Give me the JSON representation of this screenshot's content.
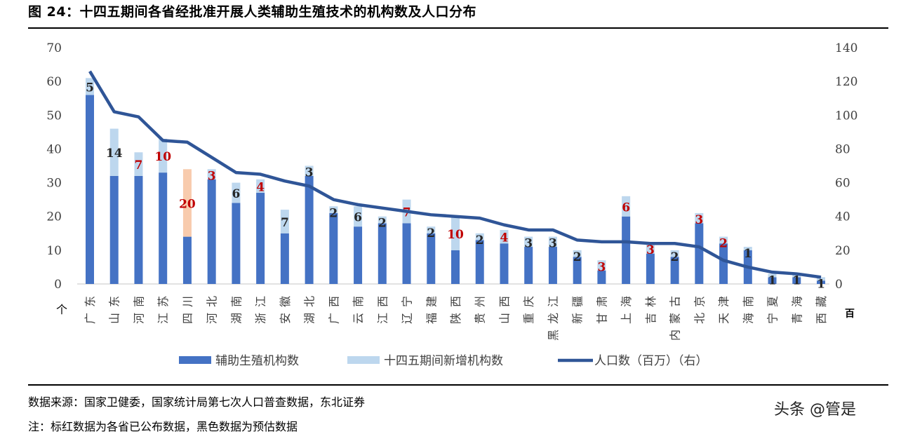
{
  "title": "图 24：十四五期间各省经批准开展人类辅助生殖技术的机构数及人口分布",
  "source": "数据来源：国家卫健委，国家统计局第七次人口普查数据，东北证券",
  "note": "注：标红数据为各省已公布数据，黑色数据为预估数据",
  "watermark": "头条 @管是",
  "colors": {
    "base": "#4472c4",
    "added": "#bdd7ee",
    "added_sichuan": "#f8cbad",
    "line": "#2f5597",
    "published_label": "#c00000",
    "estimated_label": "#262626"
  },
  "chart_data": {
    "type": "bar",
    "stacked": true,
    "left_axis": {
      "ylim": [
        0,
        70
      ],
      "ticks": [
        0,
        10,
        20,
        30,
        40,
        50,
        60,
        70
      ],
      "unit": "个"
    },
    "right_axis": {
      "ylim": [
        0,
        140
      ],
      "ticks": [
        0,
        20,
        40,
        60,
        80,
        100,
        120,
        140
      ],
      "unit": "百"
    },
    "grid": false,
    "legend_placement": "bottom",
    "categories": [
      "广东",
      "山东",
      "河南",
      "江苏",
      "四川",
      "河北",
      "湖南",
      "浙江",
      "安徽",
      "湖北",
      "广西",
      "云南",
      "江西",
      "辽宁",
      "福建",
      "陕西",
      "贵州",
      "山西",
      "重庆",
      "黑龙江",
      "新疆",
      "甘肃",
      "上海",
      "吉林",
      "内蒙古",
      "北京",
      "天津",
      "海南",
      "宁夏",
      "青海",
      "西藏"
    ],
    "series": [
      {
        "name": "辅助生殖机构数",
        "type": "bar",
        "axis": "left",
        "values": [
          56,
          32,
          32,
          33,
          14,
          31,
          24,
          27,
          15,
          32,
          21,
          17,
          18,
          18,
          15,
          10,
          13,
          12,
          11,
          11,
          8,
          4,
          20,
          9,
          8,
          18,
          12,
          10,
          2,
          2,
          1
        ]
      },
      {
        "name": "十四五期间新增机构数",
        "type": "bar",
        "axis": "left",
        "values": [
          5,
          14,
          7,
          10,
          20,
          3,
          6,
          4,
          7,
          3,
          2,
          6,
          2,
          7,
          2,
          10,
          2,
          4,
          3,
          3,
          2,
          3,
          6,
          3,
          2,
          3,
          2,
          1,
          1,
          1,
          1
        ],
        "published": [
          false,
          false,
          true,
          true,
          true,
          true,
          false,
          true,
          false,
          false,
          false,
          false,
          false,
          true,
          false,
          true,
          false,
          true,
          false,
          false,
          false,
          true,
          true,
          true,
          false,
          true,
          true,
          false,
          false,
          false,
          false
        ]
      },
      {
        "name": "人口数（百万）（右）",
        "type": "line",
        "axis": "right",
        "values": [
          126,
          102,
          99,
          85,
          84,
          75,
          66,
          65,
          61,
          58,
          50,
          47,
          45,
          43,
          41,
          40,
          39,
          35,
          32,
          32,
          26,
          25,
          25,
          24,
          24,
          22,
          14,
          10,
          7,
          6,
          4
        ]
      }
    ]
  }
}
